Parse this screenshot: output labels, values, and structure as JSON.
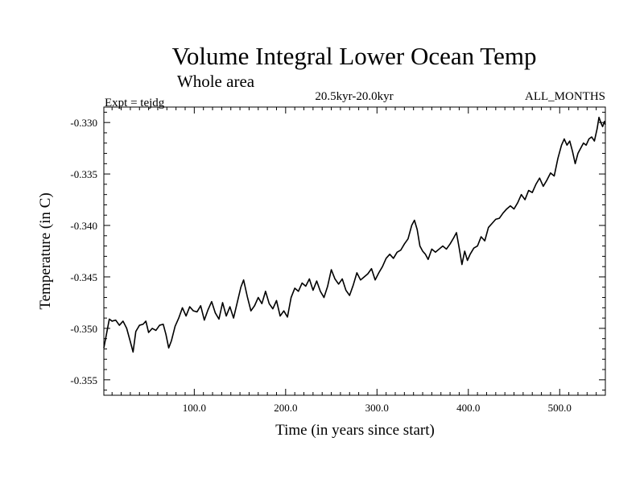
{
  "chart_data": {
    "type": "line",
    "title": "Volume Integral Lower Ocean Temp",
    "subtitle": "Whole area",
    "experiment_label": "Expt = tejdg",
    "period_label": "20.5kyr-20.0kyr",
    "months_label": "ALL_MONTHS",
    "xlabel": "Time (in years since start)",
    "ylabel": "Temperature (in C)",
    "xlim": [
      1,
      550
    ],
    "ylim": [
      -0.3565,
      -0.3285
    ],
    "xticks": [
      100,
      200,
      300,
      400,
      500
    ],
    "xtick_labels": [
      "100.0",
      "200.0",
      "300.0",
      "400.0",
      "500.0"
    ],
    "yticks": [
      -0.355,
      -0.35,
      -0.345,
      -0.34,
      -0.335,
      -0.33
    ],
    "ytick_labels": [
      "-0.355",
      "-0.350",
      "-0.345",
      "-0.340",
      "-0.335",
      "-0.330"
    ],
    "grid": false,
    "series": [
      {
        "name": "Volume Integral Lower Ocean Temp",
        "color": "#000000",
        "points": [
          [
            1,
            -0.3519
          ],
          [
            4,
            -0.3505
          ],
          [
            7,
            -0.3491
          ],
          [
            10,
            -0.3493
          ],
          [
            14,
            -0.3492
          ],
          [
            18,
            -0.3497
          ],
          [
            22,
            -0.3493
          ],
          [
            26,
            -0.35
          ],
          [
            30,
            -0.3513
          ],
          [
            33,
            -0.3523
          ],
          [
            36,
            -0.3503
          ],
          [
            40,
            -0.3497
          ],
          [
            44,
            -0.3496
          ],
          [
            47,
            -0.3493
          ],
          [
            50,
            -0.3504
          ],
          [
            54,
            -0.35
          ],
          [
            58,
            -0.3502
          ],
          [
            62,
            -0.3497
          ],
          [
            66,
            -0.3496
          ],
          [
            69,
            -0.3506
          ],
          [
            72,
            -0.3519
          ],
          [
            75,
            -0.3512
          ],
          [
            79,
            -0.3498
          ],
          [
            83,
            -0.349
          ],
          [
            87,
            -0.348
          ],
          [
            91,
            -0.3488
          ],
          [
            95,
            -0.3479
          ],
          [
            99,
            -0.3483
          ],
          [
            103,
            -0.3484
          ],
          [
            107,
            -0.3478
          ],
          [
            111,
            -0.3492
          ],
          [
            115,
            -0.3482
          ],
          [
            119,
            -0.3474
          ],
          [
            123,
            -0.3485
          ],
          [
            127,
            -0.3491
          ],
          [
            131,
            -0.3475
          ],
          [
            135,
            -0.3488
          ],
          [
            139,
            -0.3479
          ],
          [
            143,
            -0.349
          ],
          [
            147,
            -0.3475
          ],
          [
            151,
            -0.346
          ],
          [
            154,
            -0.3453
          ],
          [
            158,
            -0.3469
          ],
          [
            162,
            -0.3483
          ],
          [
            166,
            -0.3478
          ],
          [
            170,
            -0.347
          ],
          [
            174,
            -0.3476
          ],
          [
            178,
            -0.3464
          ],
          [
            182,
            -0.3476
          ],
          [
            186,
            -0.3481
          ],
          [
            190,
            -0.3473
          ],
          [
            194,
            -0.3488
          ],
          [
            198,
            -0.3483
          ],
          [
            202,
            -0.3489
          ],
          [
            206,
            -0.347
          ],
          [
            210,
            -0.3461
          ],
          [
            214,
            -0.3464
          ],
          [
            218,
            -0.3456
          ],
          [
            222,
            -0.3459
          ],
          [
            226,
            -0.3452
          ],
          [
            230,
            -0.3463
          ],
          [
            234,
            -0.3454
          ],
          [
            238,
            -0.3464
          ],
          [
            242,
            -0.347
          ],
          [
            246,
            -0.3459
          ],
          [
            250,
            -0.3443
          ],
          [
            254,
            -0.3452
          ],
          [
            258,
            -0.3457
          ],
          [
            262,
            -0.3452
          ],
          [
            266,
            -0.3463
          ],
          [
            270,
            -0.3468
          ],
          [
            274,
            -0.3458
          ],
          [
            278,
            -0.3446
          ],
          [
            282,
            -0.3453
          ],
          [
            286,
            -0.345
          ],
          [
            290,
            -0.3447
          ],
          [
            294,
            -0.3442
          ],
          [
            298,
            -0.3453
          ],
          [
            302,
            -0.3446
          ],
          [
            306,
            -0.344
          ],
          [
            310,
            -0.3432
          ],
          [
            314,
            -0.3428
          ],
          [
            318,
            -0.3432
          ],
          [
            322,
            -0.3426
          ],
          [
            326,
            -0.3424
          ],
          [
            330,
            -0.3418
          ],
          [
            334,
            -0.3413
          ],
          [
            338,
            -0.34
          ],
          [
            341,
            -0.3395
          ],
          [
            344,
            -0.3404
          ],
          [
            347,
            -0.342
          ],
          [
            350,
            -0.3425
          ],
          [
            353,
            -0.3428
          ],
          [
            356,
            -0.3433
          ],
          [
            360,
            -0.3423
          ],
          [
            364,
            -0.3426
          ],
          [
            368,
            -0.3423
          ],
          [
            372,
            -0.342
          ],
          [
            376,
            -0.3423
          ],
          [
            380,
            -0.3418
          ],
          [
            384,
            -0.3412
          ],
          [
            387,
            -0.3407
          ],
          [
            390,
            -0.3422
          ],
          [
            393,
            -0.3438
          ],
          [
            396,
            -0.3425
          ],
          [
            399,
            -0.3434
          ],
          [
            402,
            -0.3428
          ],
          [
            406,
            -0.3422
          ],
          [
            410,
            -0.342
          ],
          [
            414,
            -0.3411
          ],
          [
            418,
            -0.3415
          ],
          [
            422,
            -0.3402
          ],
          [
            426,
            -0.3398
          ],
          [
            430,
            -0.3394
          ],
          [
            434,
            -0.3393
          ],
          [
            438,
            -0.3388
          ],
          [
            442,
            -0.3384
          ],
          [
            446,
            -0.3381
          ],
          [
            450,
            -0.3384
          ],
          [
            454,
            -0.3378
          ],
          [
            458,
            -0.337
          ],
          [
            462,
            -0.3375
          ],
          [
            466,
            -0.3366
          ],
          [
            470,
            -0.3368
          ],
          [
            474,
            -0.336
          ],
          [
            478,
            -0.3354
          ],
          [
            482,
            -0.3362
          ],
          [
            486,
            -0.3356
          ],
          [
            490,
            -0.3349
          ],
          [
            494,
            -0.3352
          ],
          [
            498,
            -0.3335
          ],
          [
            502,
            -0.3322
          ],
          [
            505,
            -0.3316
          ],
          [
            508,
            -0.3322
          ],
          [
            511,
            -0.3318
          ],
          [
            514,
            -0.3328
          ],
          [
            517,
            -0.334
          ],
          [
            520,
            -0.333
          ],
          [
            523,
            -0.3325
          ],
          [
            526,
            -0.332
          ],
          [
            529,
            -0.3322
          ],
          [
            532,
            -0.3316
          ],
          [
            535,
            -0.3314
          ],
          [
            538,
            -0.3318
          ],
          [
            541,
            -0.3306
          ],
          [
            543,
            -0.3295
          ],
          [
            545,
            -0.33
          ],
          [
            547,
            -0.3304
          ],
          [
            549,
            -0.3299
          ],
          [
            550,
            -0.3302
          ]
        ]
      }
    ]
  }
}
